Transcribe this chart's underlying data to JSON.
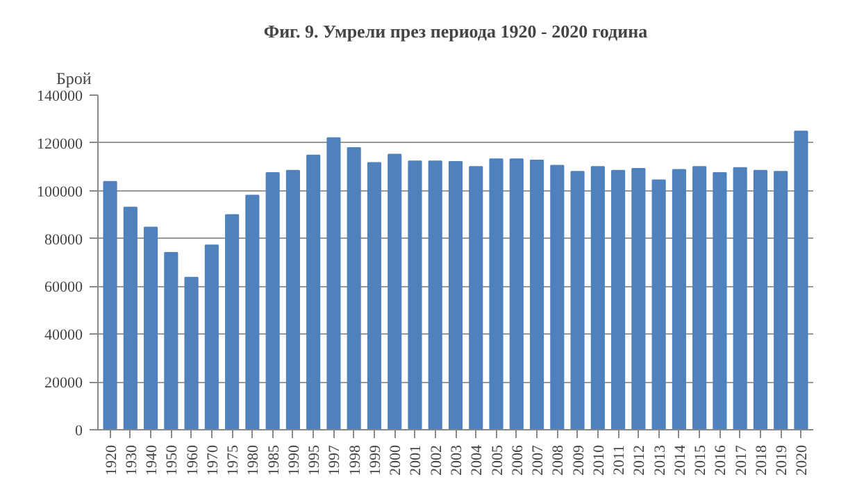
{
  "chart_data": {
    "type": "bar",
    "title": "Фиг. 9. Умрели през периода 1920 - 2020 година",
    "ylabel": "Брой",
    "categories": [
      "1920",
      "1930",
      "1940",
      "1950",
      "1960",
      "1970",
      "1975",
      "1980",
      "1985",
      "1990",
      "1995",
      "1997",
      "1998",
      "1999",
      "2000",
      "2001",
      "2002",
      "2003",
      "2004",
      "2005",
      "2006",
      "2007",
      "2008",
      "2009",
      "2010",
      "2011",
      "2012",
      "2013",
      "2014",
      "2015",
      "2016",
      "2017",
      "2018",
      "2019",
      "2020"
    ],
    "values": [
      103800,
      93000,
      84700,
      74100,
      63700,
      77200,
      89900,
      98000,
      107500,
      108400,
      114800,
      122100,
      117900,
      111700,
      115200,
      112300,
      112300,
      112100,
      110000,
      113200,
      113200,
      112700,
      110500,
      108000,
      110000,
      108400,
      109200,
      104400,
      108800,
      110000,
      107500,
      109600,
      108400,
      108000,
      124800
    ],
    "color": "#4f81bd",
    "ylim": [
      0,
      140000
    ],
    "yticks": [
      0,
      20000,
      40000,
      60000,
      80000,
      100000,
      120000,
      140000
    ],
    "grid": "y"
  }
}
